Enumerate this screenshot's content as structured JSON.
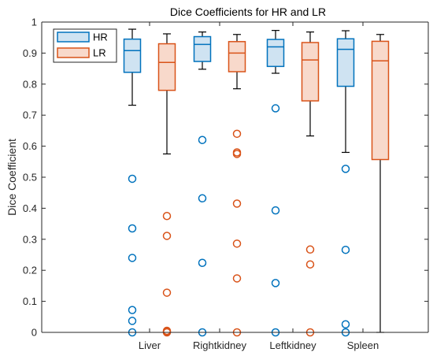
{
  "chart_data": {
    "type": "boxplot",
    "title": "Dice Coefficients for HR and LR",
    "xlabel": "",
    "ylabel": "Dice Coefficient",
    "ylim": [
      0,
      1
    ],
    "yticks": [
      "0",
      "0.1",
      "0.2",
      "0.3",
      "0.4",
      "0.5",
      "0.6",
      "0.7",
      "0.8",
      "0.9",
      "1"
    ],
    "categories": [
      "Liver",
      "Rightkidney",
      "Leftkidney",
      "Spleen"
    ],
    "legend_position": "top-left",
    "grid": false,
    "series": [
      {
        "name": "HR",
        "color": "#0072BD",
        "fill": "#cfe3f2",
        "boxes": [
          {
            "whisker_low": 0.732,
            "q1": 0.838,
            "median": 0.908,
            "q3": 0.945,
            "whisker_high": 0.977,
            "outliers": [
              0.495,
              0.335,
              0.24,
              0.072,
              0.037,
              0.0
            ]
          },
          {
            "whisker_low": 0.848,
            "q1": 0.873,
            "median": 0.928,
            "q3": 0.953,
            "whisker_high": 0.968,
            "outliers": [
              0.62,
              0.432,
              0.224,
              0.0
            ]
          },
          {
            "whisker_low": 0.835,
            "q1": 0.857,
            "median": 0.92,
            "q3": 0.944,
            "whisker_high": 0.973,
            "outliers": [
              0.722,
              0.393,
              0.159,
              0.0
            ]
          },
          {
            "whisker_low": 0.58,
            "q1": 0.793,
            "median": 0.912,
            "q3": 0.946,
            "whisker_high": 0.972,
            "outliers": [
              0.527,
              0.266,
              0.026,
              0.0
            ]
          }
        ]
      },
      {
        "name": "LR",
        "color": "#D95319",
        "fill": "#f8d9cb",
        "boxes": [
          {
            "whisker_low": 0.575,
            "q1": 0.78,
            "median": 0.87,
            "q3": 0.93,
            "whisker_high": 0.962,
            "outliers": [
              0.375,
              0.311,
              0.128,
              0.005,
              0.002,
              0.0
            ]
          },
          {
            "whisker_low": 0.785,
            "q1": 0.84,
            "median": 0.9,
            "q3": 0.937,
            "whisker_high": 0.96,
            "outliers": [
              0.64,
              0.58,
              0.575,
              0.415,
              0.286,
              0.174,
              0.0
            ]
          },
          {
            "whisker_low": 0.633,
            "q1": 0.746,
            "median": 0.878,
            "q3": 0.934,
            "whisker_high": 0.968,
            "outliers": [
              0.267,
              0.219,
              0.0
            ]
          },
          {
            "whisker_low": 0.0,
            "q1": 0.557,
            "median": 0.875,
            "q3": 0.938,
            "whisker_high": 0.96,
            "outliers": []
          }
        ]
      }
    ]
  }
}
